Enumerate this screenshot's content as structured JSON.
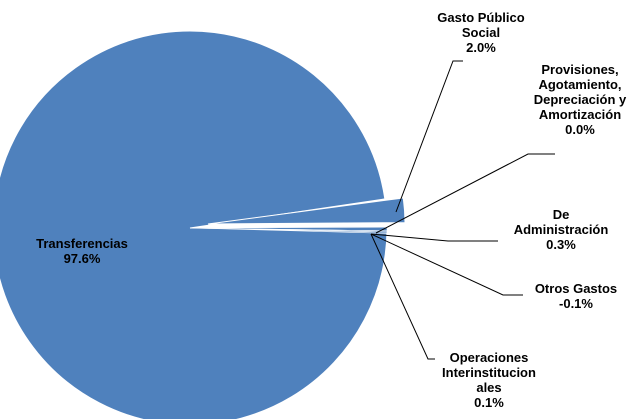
{
  "chart_data": {
    "type": "pie",
    "title": "",
    "colors": {
      "slice": "#4f81bd",
      "edge": "#ffffff",
      "leader": "#000000"
    },
    "slices": [
      {
        "label_lines": [
          "Transferencias",
          "97.6%"
        ],
        "value": 97.6
      },
      {
        "label_lines": [
          "Gasto Público",
          "Social",
          "2.0%"
        ],
        "value": 2.0
      },
      {
        "label_lines": [
          "Provisiones,",
          "Agotamiento,",
          "Depreciación y",
          "Amortización",
          "0.0%"
        ],
        "value": 0.0
      },
      {
        "label_lines": [
          "De",
          "Administración",
          "0.3%"
        ],
        "value": 0.3
      },
      {
        "label_lines": [
          "Otros Gastos",
          "-0.1%"
        ],
        "value": -0.1
      },
      {
        "label_lines": [
          "Operaciones",
          "Interinstitucion",
          "ales",
          "0.1%"
        ],
        "value": 0.1
      }
    ]
  }
}
